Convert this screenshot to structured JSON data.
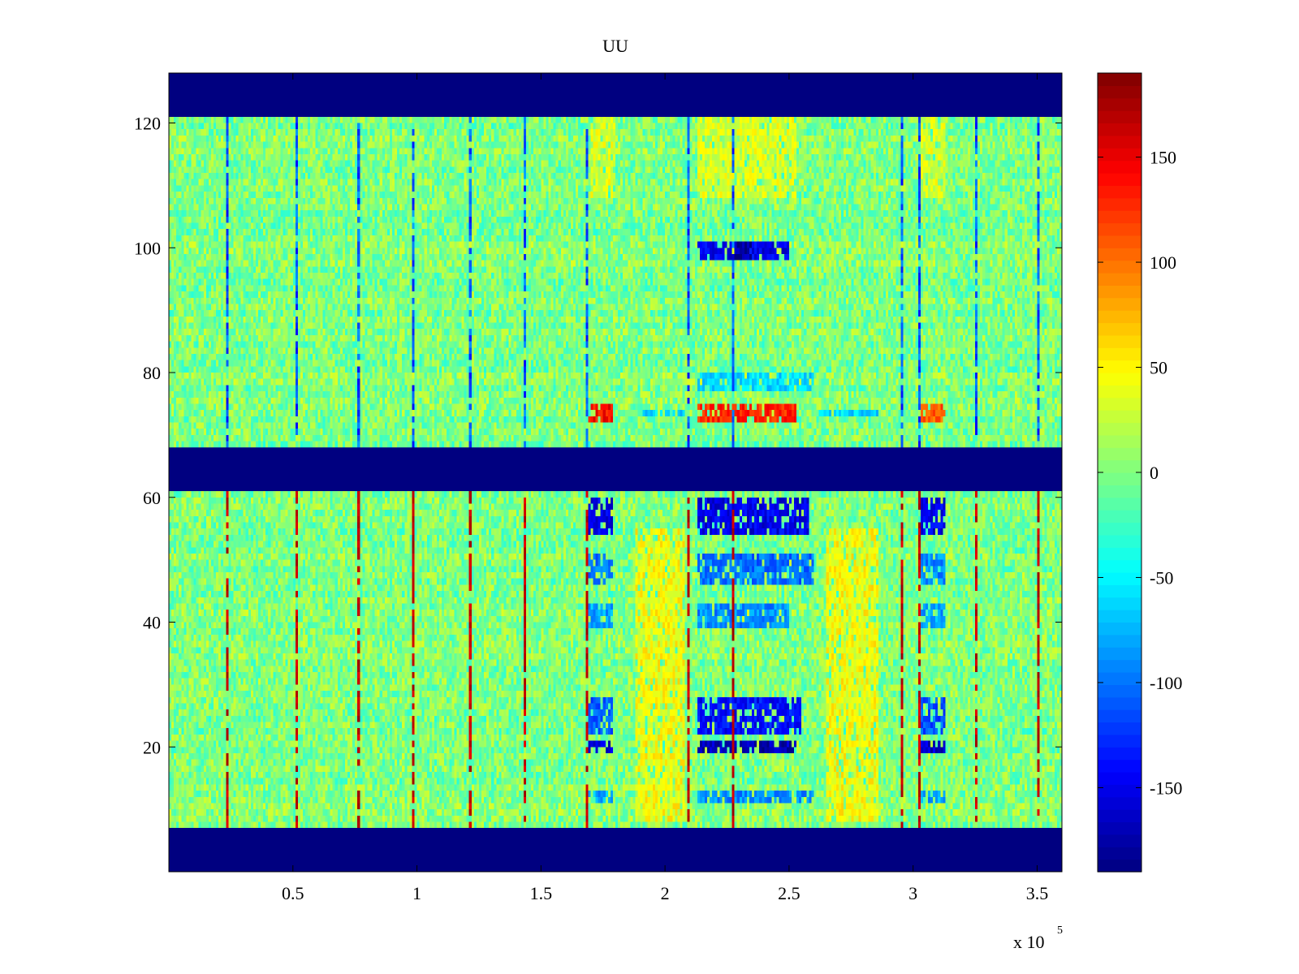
{
  "chart_data": {
    "type": "heatmap",
    "title": "UU",
    "xlabel": "",
    "ylabel": "",
    "x_multiplier_label": "x 10",
    "x_multiplier_exponent": "5",
    "xlim": [
      0.0,
      3.6
    ],
    "ylim": [
      0,
      128
    ],
    "x_ticks": [
      0.5,
      1,
      1.5,
      2,
      2.5,
      3,
      3.5
    ],
    "x_tick_labels": [
      "0.5",
      "1",
      "1.5",
      "2",
      "2.5",
      "3",
      "3.5"
    ],
    "y_ticks": [
      20,
      40,
      60,
      80,
      100,
      120
    ],
    "y_tick_labels": [
      "20",
      "40",
      "60",
      "80",
      "100",
      "120"
    ],
    "colorbar": {
      "colormap": "jet",
      "clim": [
        -190,
        190
      ],
      "ticks": [
        150,
        100,
        50,
        0,
        -50,
        -100,
        -150
      ],
      "tick_labels": [
        "150",
        "100",
        "50",
        "0",
        "-50",
        "-100",
        "-150"
      ]
    },
    "masked_value": -190,
    "masked_y_ranges": [
      [
        0,
        7
      ],
      [
        61,
        68
      ],
      [
        121,
        128
      ]
    ],
    "background_range": [
      -25,
      25
    ],
    "event_columns_x": [
      0.23,
      0.51,
      0.76,
      0.98,
      1.21,
      1.43,
      1.68,
      2.09,
      2.27,
      2.95,
      3.02,
      3.25,
      3.5
    ],
    "blocks": [
      {
        "x": [
          1.69,
          1.79
        ],
        "y": [
          72,
          75
        ],
        "value": 140
      },
      {
        "x": [
          2.13,
          2.53
        ],
        "y": [
          72,
          75
        ],
        "value": 130
      },
      {
        "x": [
          3.03,
          3.13
        ],
        "y": [
          72,
          75
        ],
        "value": 110
      },
      {
        "x": [
          2.13,
          2.6
        ],
        "y": [
          77,
          80
        ],
        "value": -60
      },
      {
        "x": [
          1.9,
          2.08
        ],
        "y": [
          73,
          74
        ],
        "value": -60
      },
      {
        "x": [
          2.62,
          2.86
        ],
        "y": [
          73,
          74
        ],
        "value": -60
      },
      {
        "x": [
          2.13,
          2.5
        ],
        "y": [
          98,
          101
        ],
        "value": -150
      },
      {
        "x": [
          2.28,
          2.35
        ],
        "y": [
          98,
          101
        ],
        "value": -180
      },
      {
        "x": [
          1.69,
          1.79
        ],
        "y": [
          54,
          60
        ],
        "value": -150
      },
      {
        "x": [
          2.13,
          2.58
        ],
        "y": [
          54,
          60
        ],
        "value": -150
      },
      {
        "x": [
          3.03,
          3.13
        ],
        "y": [
          54,
          60
        ],
        "value": -150
      },
      {
        "x": [
          1.69,
          1.79
        ],
        "y": [
          46,
          51
        ],
        "value": -100
      },
      {
        "x": [
          2.13,
          2.6
        ],
        "y": [
          46,
          51
        ],
        "value": -100
      },
      {
        "x": [
          3.03,
          3.13
        ],
        "y": [
          46,
          51
        ],
        "value": -90
      },
      {
        "x": [
          1.69,
          1.79
        ],
        "y": [
          39,
          43
        ],
        "value": -80
      },
      {
        "x": [
          2.13,
          2.5
        ],
        "y": [
          39,
          43
        ],
        "value": -90
      },
      {
        "x": [
          3.03,
          3.13
        ],
        "y": [
          39,
          43
        ],
        "value": -80
      },
      {
        "x": [
          1.69,
          1.79
        ],
        "y": [
          22,
          28
        ],
        "value": -110
      },
      {
        "x": [
          2.13,
          2.55
        ],
        "y": [
          22,
          28
        ],
        "value": -140
      },
      {
        "x": [
          3.03,
          3.13
        ],
        "y": [
          22,
          28
        ],
        "value": -110
      },
      {
        "x": [
          1.69,
          1.79
        ],
        "y": [
          19,
          21
        ],
        "value": -160
      },
      {
        "x": [
          2.13,
          2.53
        ],
        "y": [
          19,
          21
        ],
        "value": -170
      },
      {
        "x": [
          3.03,
          3.13
        ],
        "y": [
          19,
          21
        ],
        "value": -160
      },
      {
        "x": [
          1.69,
          1.79
        ],
        "y": [
          11,
          13
        ],
        "value": -80
      },
      {
        "x": [
          2.13,
          2.6
        ],
        "y": [
          11,
          13
        ],
        "value": -90
      },
      {
        "x": [
          3.03,
          3.13
        ],
        "y": [
          11,
          13
        ],
        "value": -80
      },
      {
        "x": [
          1.88,
          2.08
        ],
        "y": [
          8,
          55
        ],
        "value": 45
      },
      {
        "x": [
          2.65,
          2.86
        ],
        "y": [
          8,
          55
        ],
        "value": 45
      },
      {
        "x": [
          2.13,
          2.53
        ],
        "y": [
          108,
          121
        ],
        "value": 35
      },
      {
        "x": [
          1.7,
          1.8
        ],
        "y": [
          108,
          121
        ],
        "value": 35
      },
      {
        "x": [
          3.03,
          3.13
        ],
        "y": [
          108,
          121
        ],
        "value": 35
      }
    ]
  }
}
